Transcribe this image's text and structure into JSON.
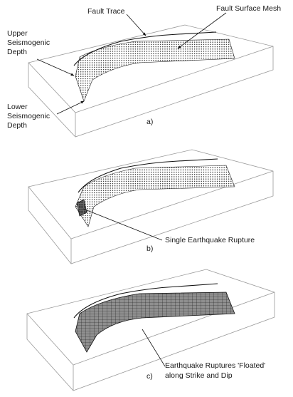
{
  "panels": [
    {
      "caption": "a)",
      "labels": {
        "fault_trace": "Fault Trace",
        "fault_surface_mesh": "Fault Surface Mesh",
        "upper_depth": [
          "Upper",
          "Seismogenic",
          "Depth"
        ],
        "lower_depth": [
          "Lower",
          "Seismogenic",
          "Depth"
        ]
      }
    },
    {
      "caption": "b)",
      "labels": {
        "single_rupture": "Single Earthquake Rupture"
      }
    },
    {
      "caption": "c)",
      "labels": {
        "floated_ruptures": [
          "Earthquake Ruptures 'Floated'",
          "along Strike and Dip"
        ]
      }
    }
  ],
  "colors": {
    "box_edge": "#9a9a9a",
    "ink": "#111111",
    "mesh_dot": "#333333",
    "rupture_fill": "#777777",
    "grid_fill": "#8f8f8f"
  }
}
